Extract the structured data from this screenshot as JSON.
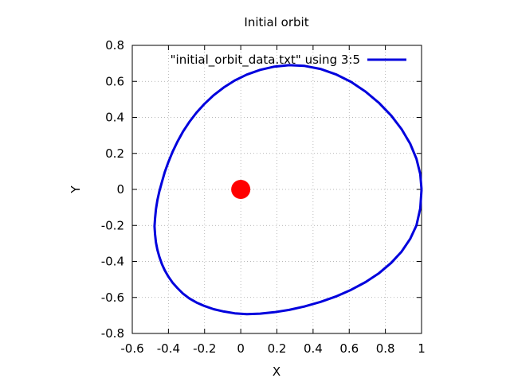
{
  "chart_data": {
    "type": "line",
    "title": "Initial orbit",
    "xlabel": "X",
    "ylabel": "Y",
    "xlim": [
      -0.6,
      1.0
    ],
    "ylim": [
      -0.8,
      0.8
    ],
    "xticks": [
      -0.6,
      -0.4,
      -0.2,
      0,
      0.2,
      0.4,
      0.6,
      0.8,
      1.0
    ],
    "xtick_labels": [
      "-0.6",
      "-0.4",
      "-0.2",
      "0",
      "0.2",
      "0.4",
      "0.6",
      "0.8",
      "1"
    ],
    "yticks": [
      -0.8,
      -0.6,
      -0.4,
      -0.2,
      0,
      0.2,
      0.4,
      0.6,
      0.8
    ],
    "ytick_labels": [
      "-0.8",
      "-0.6",
      "-0.4",
      "-0.2",
      "0",
      "0.2",
      "0.4",
      "0.6",
      "0.8"
    ],
    "grid": true,
    "legend_position": "top",
    "series": [
      {
        "name": "\"initial_orbit_data.txt\" using 3:5",
        "color": "#0000dd",
        "x": [
          1.0,
          0.993,
          0.972,
          0.937,
          0.89,
          0.832,
          0.765,
          0.69,
          0.61,
          0.526,
          0.44,
          0.353,
          0.268,
          0.186,
          0.107,
          0.034,
          -0.033,
          -0.094,
          -0.15,
          -0.2,
          -0.245,
          -0.285,
          -0.32,
          -0.35,
          -0.377,
          -0.4,
          -0.42,
          -0.436,
          -0.45,
          -0.461,
          -0.469,
          -0.474,
          -0.477,
          -0.474,
          -0.469,
          -0.461,
          -0.45,
          -0.436,
          -0.42,
          -0.4,
          -0.377,
          -0.35,
          -0.32,
          -0.285,
          -0.245,
          -0.2,
          -0.15,
          -0.094,
          -0.033,
          0.034,
          0.107,
          0.186,
          0.268,
          0.353,
          0.44,
          0.526,
          0.61,
          0.69,
          0.765,
          0.832,
          0.89,
          0.937,
          0.972,
          0.993,
          1.0
        ],
        "y": [
          0.0,
          0.085,
          0.17,
          0.254,
          0.334,
          0.41,
          0.48,
          0.543,
          0.597,
          0.639,
          0.669,
          0.686,
          0.69,
          0.682,
          0.664,
          0.638,
          0.605,
          0.566,
          0.523,
          0.476,
          0.426,
          0.374,
          0.32,
          0.265,
          0.209,
          0.153,
          0.097,
          0.041,
          -0.01,
          -0.06,
          -0.11,
          -0.16,
          -0.205,
          -0.25,
          -0.295,
          -0.335,
          -0.375,
          -0.415,
          -0.45,
          -0.485,
          -0.518,
          -0.548,
          -0.578,
          -0.605,
          -0.628,
          -0.648,
          -0.665,
          -0.678,
          -0.688,
          -0.693,
          -0.69,
          -0.682,
          -0.669,
          -0.65,
          -0.625,
          -0.595,
          -0.558,
          -0.515,
          -0.465,
          -0.408,
          -0.345,
          -0.275,
          -0.2,
          -0.105,
          0.0
        ]
      }
    ],
    "central_body": {
      "x": 0.0,
      "y": 0.0,
      "color": "#ff0000"
    }
  }
}
